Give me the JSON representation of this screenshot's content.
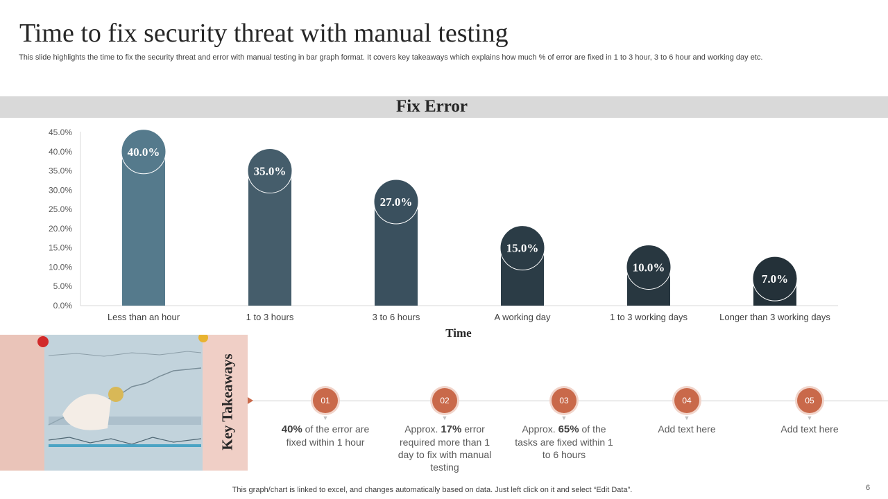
{
  "slide": {
    "title": "Time to fix security threat with manual testing",
    "subtitle": "This slide highlights the time to fix  the security threat and error with manual testing in bar graph format. It covers key takeaways which explains how much % of error are fixed  in 1 to  3 hour, 3 to  6 hour and working day etc.",
    "footnote": "This graph/chart is linked to excel,  and changes automatically based on data. Just left click on it and select “Edit Data”.",
    "page_number": "6"
  },
  "chart_data": {
    "type": "bar",
    "title": "Fix Error",
    "xlabel": "Time",
    "ylabel": "",
    "categories": [
      "Less than an hour",
      "1 to 3 hours",
      "3 to 6 hours",
      "A working day",
      "1 to 3 working days",
      "Longer than 3 working days"
    ],
    "values": [
      40.0,
      35.0,
      27.0,
      15.0,
      10.0,
      7.0
    ],
    "value_labels": [
      "40.0%",
      "35.0%",
      "27.0%",
      "15.0%",
      "10.0%",
      "7.0%"
    ],
    "ylim": [
      0,
      45
    ],
    "yticks": [
      "0.0%",
      "5.0%",
      "10.0%",
      "15.0%",
      "20.0%",
      "25.0%",
      "30.0%",
      "35.0%",
      "40.0%",
      "45.0%"
    ],
    "bar_colors": [
      "#557a8c",
      "#455d6b",
      "#3a505e",
      "#2b3c46",
      "#283740",
      "#243139"
    ],
    "grid": false,
    "legend": "none"
  },
  "takeaways": {
    "heading": "Key Takeaways",
    "accent_color": "#c9694a",
    "items": [
      {
        "num": "01",
        "bold": "40%",
        "text": " of the error are fixed within 1 hour",
        "prefix": ""
      },
      {
        "num": "02",
        "prefix": "Approx. ",
        "bold": "17%",
        "text": " error required more than 1 day to fix with manual testing"
      },
      {
        "num": "03",
        "prefix": "Approx. ",
        "bold": "65%",
        "text": " of the tasks are fixed within 1 to 6 hours"
      },
      {
        "num": "04",
        "prefix": "",
        "bold": "",
        "text": "Add text here"
      },
      {
        "num": "05",
        "prefix": "",
        "bold": "",
        "text": "Add text here"
      }
    ]
  }
}
